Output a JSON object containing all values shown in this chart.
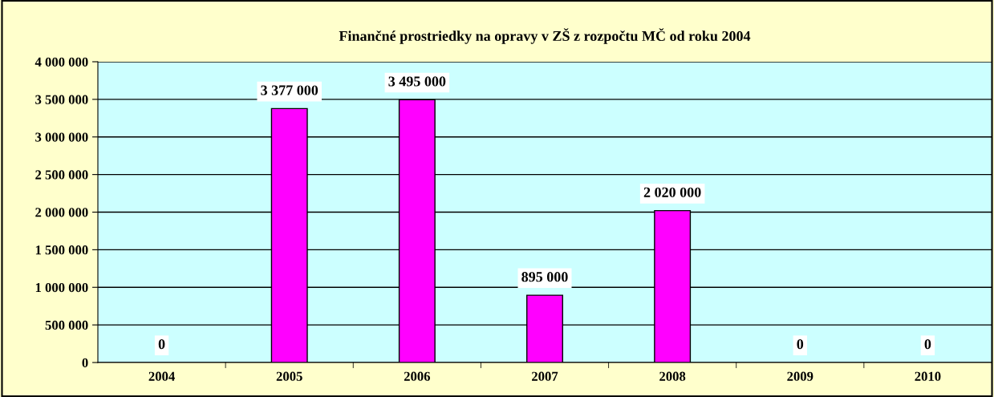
{
  "chart_data": {
    "type": "bar",
    "title": "Finančné prostriedky na opravy v ZŠ z rozpočtu MČ od roku 2004",
    "categories": [
      "2004",
      "2005",
      "2006",
      "2007",
      "2008",
      "2009",
      "2010"
    ],
    "values": [
      0,
      3377000,
      3495000,
      895000,
      2020000,
      0,
      0
    ],
    "value_labels": [
      "0",
      "3 377 000",
      "3 495 000",
      "895 000",
      "2 020 000",
      "0",
      "0"
    ],
    "color": "#ff00ff",
    "ylim": [
      0,
      4000000
    ],
    "yticks": [
      {
        "value": 0,
        "label": "0"
      },
      {
        "value": 500000,
        "label": "500 000"
      },
      {
        "value": 1000000,
        "label": "1 000 000"
      },
      {
        "value": 1500000,
        "label": "1 500 000"
      },
      {
        "value": 2000000,
        "label": "2 000 000"
      },
      {
        "value": 2500000,
        "label": "2 500 000"
      },
      {
        "value": 3000000,
        "label": "3 000 000"
      },
      {
        "value": 3500000,
        "label": "3 500 000"
      },
      {
        "value": 4000000,
        "label": "4 000 000"
      }
    ],
    "grid": "y",
    "legend": false
  }
}
